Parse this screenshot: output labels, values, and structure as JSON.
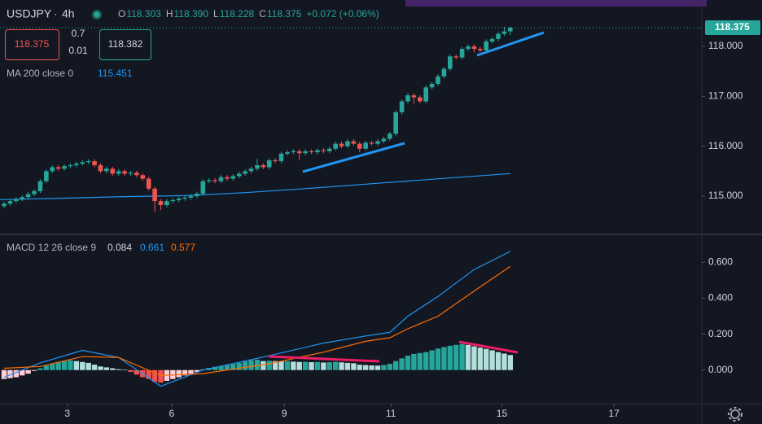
{
  "header": {
    "symbol": "USDJPY",
    "interval": "4h",
    "ohlc": [
      {
        "label": "O",
        "value": "118.303"
      },
      {
        "label": "H",
        "value": "118.390"
      },
      {
        "label": "L",
        "value": "118.228"
      },
      {
        "label": "C",
        "value": "118.375"
      }
    ],
    "change": "+0.072 (+0.06%)"
  },
  "trade": {
    "sell": "118.375",
    "spread": "0.7",
    "quantity": "0.01",
    "buy": "118.382"
  },
  "chart_data": [
    {
      "type": "candlestick",
      "open": [
        114.8,
        114.85,
        114.9,
        114.94,
        114.98,
        115.04,
        115.1,
        115.3,
        115.5,
        115.58,
        115.55,
        115.6,
        115.62,
        115.65,
        115.68,
        115.7,
        115.62,
        115.5,
        115.55,
        115.45,
        115.5,
        115.45,
        115.47,
        115.42,
        115.35,
        115.15,
        114.9,
        114.82,
        114.9,
        114.92,
        114.95,
        114.97,
        115.0,
        115.05,
        115.3,
        115.32,
        115.3,
        115.38,
        115.35,
        115.4,
        115.45,
        115.5,
        115.55,
        115.62,
        115.58,
        115.72,
        115.7,
        115.85,
        115.88,
        115.9,
        115.86,
        115.9,
        115.88,
        115.92,
        115.9,
        115.95,
        116.05,
        116.0,
        116.1,
        116.05,
        115.95,
        116.07,
        116.05,
        116.1,
        116.15,
        116.25,
        116.68,
        116.9,
        117.02,
        116.98,
        116.9,
        117.18,
        117.25,
        117.4,
        117.55,
        117.8,
        117.78,
        117.95,
        118.0,
        117.95,
        117.92,
        118.1,
        118.15,
        118.25,
        118.303
      ],
      "high": [
        114.89,
        114.94,
        114.98,
        115.02,
        115.08,
        115.14,
        115.34,
        115.54,
        115.62,
        115.62,
        115.64,
        115.66,
        115.69,
        115.72,
        115.74,
        115.74,
        115.66,
        115.59,
        115.59,
        115.54,
        115.54,
        115.51,
        115.51,
        115.46,
        115.39,
        115.19,
        114.94,
        114.94,
        114.96,
        114.99,
        115.01,
        115.04,
        115.09,
        115.34,
        115.36,
        115.36,
        115.42,
        115.42,
        115.44,
        115.49,
        115.54,
        115.59,
        115.75,
        115.66,
        115.76,
        115.76,
        115.89,
        115.92,
        115.94,
        115.94,
        115.94,
        115.94,
        115.96,
        115.96,
        115.99,
        116.09,
        116.09,
        116.14,
        116.14,
        116.09,
        116.11,
        116.11,
        116.14,
        116.19,
        116.29,
        116.72,
        116.94,
        117.06,
        117.06,
        117.02,
        117.22,
        117.29,
        117.44,
        117.59,
        117.84,
        117.84,
        117.99,
        118.04,
        118.04,
        117.99,
        118.14,
        118.19,
        118.29,
        118.39,
        118.39
      ],
      "low": [
        114.76,
        114.81,
        114.86,
        114.9,
        114.94,
        115.0,
        115.06,
        115.26,
        115.46,
        115.51,
        115.51,
        115.56,
        115.58,
        115.61,
        115.64,
        115.58,
        115.46,
        115.46,
        115.41,
        115.41,
        115.41,
        115.41,
        115.38,
        115.31,
        115.11,
        114.68,
        114.72,
        114.78,
        114.86,
        114.88,
        114.91,
        114.93,
        114.96,
        115.01,
        115.26,
        115.26,
        115.26,
        115.31,
        115.31,
        115.36,
        115.41,
        115.46,
        115.51,
        115.54,
        115.54,
        115.66,
        115.66,
        115.81,
        115.84,
        115.72,
        115.82,
        115.84,
        115.84,
        115.86,
        115.86,
        115.91,
        115.96,
        115.96,
        116.01,
        115.88,
        115.91,
        116.01,
        116.01,
        116.06,
        116.11,
        116.21,
        116.64,
        116.86,
        116.85,
        116.86,
        116.86,
        117.14,
        117.21,
        117.36,
        117.51,
        117.74,
        117.74,
        117.91,
        117.88,
        117.88,
        117.88,
        118.06,
        118.11,
        118.21,
        118.228
      ],
      "close": [
        114.85,
        114.9,
        114.94,
        114.98,
        115.04,
        115.1,
        115.3,
        115.5,
        115.58,
        115.55,
        115.6,
        115.62,
        115.65,
        115.68,
        115.7,
        115.62,
        115.5,
        115.55,
        115.45,
        115.5,
        115.45,
        115.47,
        115.42,
        115.35,
        115.15,
        114.9,
        114.82,
        114.9,
        114.92,
        114.95,
        114.97,
        115.0,
        115.05,
        115.3,
        115.32,
        115.3,
        115.38,
        115.35,
        115.4,
        115.45,
        115.5,
        115.55,
        115.62,
        115.58,
        115.72,
        115.7,
        115.85,
        115.88,
        115.9,
        115.86,
        115.9,
        115.88,
        115.92,
        115.9,
        115.95,
        116.05,
        116.0,
        116.1,
        116.05,
        115.95,
        116.07,
        116.05,
        116.1,
        116.15,
        116.25,
        116.68,
        116.9,
        117.02,
        116.98,
        116.9,
        117.18,
        117.25,
        117.4,
        117.55,
        117.8,
        117.78,
        117.95,
        118.0,
        117.95,
        117.92,
        118.1,
        118.15,
        118.25,
        118.3,
        118.375
      ],
      "up_color": "#26a69a",
      "down_color": "#ef5350",
      "xlim": [
        -0.68,
        115.5
      ],
      "ylim": [
        114.25,
        118.93
      ],
      "xticks": [
        {
          "value": 10.5,
          "label": "3"
        },
        {
          "value": 27.8,
          "label": "6"
        },
        {
          "value": 46.5,
          "label": "9"
        },
        {
          "value": 64.2,
          "label": "11"
        },
        {
          "value": 82.6,
          "label": "15"
        },
        {
          "value": 101.2,
          "label": "17"
        }
      ],
      "yticks": [
        {
          "value": 115,
          "label": "115.000"
        },
        {
          "value": 116,
          "label": "116.000"
        },
        {
          "value": 117,
          "label": "117.000"
        },
        {
          "value": 118,
          "label": "118.000"
        }
      ],
      "overlays": [
        {
          "name": "MA 200 close 0",
          "color": "#2196f3",
          "x": [
            -0.68,
            10,
            20,
            30,
            40,
            50,
            60,
            70,
            84
          ],
          "values": [
            114.93,
            114.96,
            114.99,
            115.01,
            115.07,
            115.15,
            115.24,
            115.33,
            115.451
          ]
        }
      ]
    },
    {
      "type": "macd",
      "name": "MACD 12 26 close 9",
      "histogram": {
        "values": [
          -0.05,
          -0.045,
          -0.04,
          -0.03,
          -0.02,
          -0.005,
          0.01,
          0.025,
          0.035,
          0.045,
          0.05,
          0.055,
          0.05,
          0.045,
          0.04,
          0.03,
          0.02,
          0.015,
          0.01,
          0.005,
          0.003,
          -0.01,
          -0.025,
          -0.04,
          -0.05,
          -0.065,
          -0.07,
          -0.06,
          -0.05,
          -0.04,
          -0.03,
          -0.02,
          -0.01,
          0.005,
          0.012,
          0.018,
          0.022,
          0.028,
          0.034,
          0.04,
          0.048,
          0.055,
          0.058,
          0.05,
          0.052,
          0.05,
          0.048,
          0.05,
          0.047,
          0.045,
          0.046,
          0.044,
          0.045,
          0.042,
          0.044,
          0.046,
          0.043,
          0.04,
          0.038,
          0.03,
          0.028,
          0.026,
          0.025,
          0.028,
          0.035,
          0.05,
          0.065,
          0.08,
          0.09,
          0.095,
          0.1,
          0.11,
          0.12,
          0.128,
          0.135,
          0.14,
          0.145,
          0.14,
          0.132,
          0.125,
          0.118,
          0.11,
          0.1,
          0.092,
          0.084
        ],
        "colors": {
          "grow_above": "#26a69a",
          "fall_above": "#b2dfdb",
          "grow_below": "#ffcdd2",
          "fall_below": "#ef5350"
        }
      },
      "series": [
        {
          "color": "#2196f3",
          "x": [
            0,
            6,
            13,
            19,
            26,
            33,
            44,
            53,
            60,
            64,
            67,
            72,
            78,
            84
          ],
          "values": [
            -0.04,
            0.04,
            0.11,
            0.07,
            -0.09,
            0.0,
            0.08,
            0.15,
            0.19,
            0.21,
            0.3,
            0.41,
            0.56,
            0.661
          ]
        },
        {
          "color": "#ff6d00",
          "x": [
            0,
            6,
            13,
            19,
            26,
            33,
            44,
            53,
            60,
            64,
            67,
            72,
            78,
            84
          ],
          "values": [
            0.01,
            0.02,
            0.075,
            0.07,
            -0.03,
            -0.02,
            0.035,
            0.1,
            0.16,
            0.18,
            0.23,
            0.3,
            0.44,
            0.577
          ]
        }
      ],
      "ylim": [
        -0.187,
        0.751
      ],
      "yticks": [
        {
          "value": 0,
          "label": "0.000"
        },
        {
          "value": 0.2,
          "label": "0.200"
        },
        {
          "value": 0.4,
          "label": "0.400"
        },
        {
          "value": 0.6,
          "label": "0.600"
        }
      ]
    }
  ]
}
